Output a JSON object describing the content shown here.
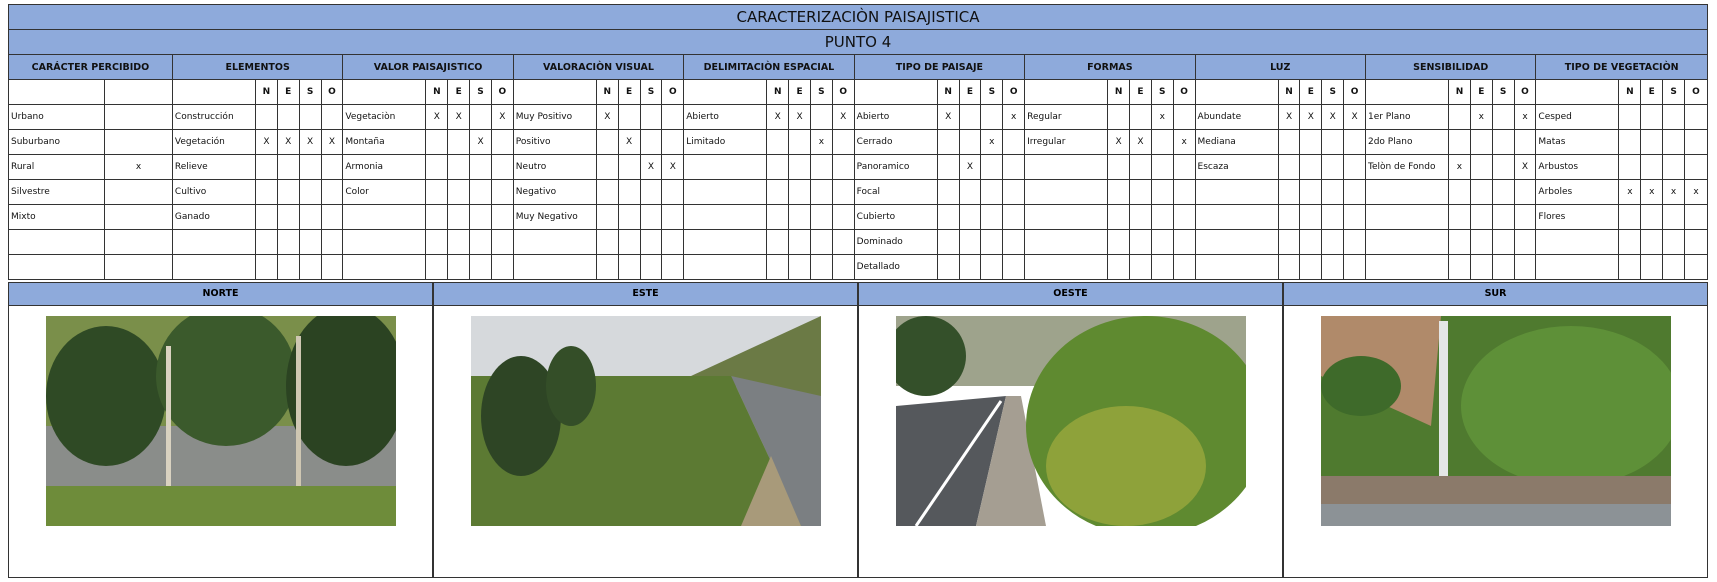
{
  "title": "CARACTERIZACIÒN PAISAJISTICA",
  "subtitle": "PUNTO 4",
  "sections": [
    {
      "title": "CARÁCTER PERCIBIDO",
      "columns": [],
      "items": [
        {
          "label": "Urbano",
          "marks": [
            null
          ]
        },
        {
          "label": "Suburbano",
          "marks": [
            null
          ]
        },
        {
          "label": "Rural",
          "marks": [
            "x"
          ]
        },
        {
          "label": "Silvestre",
          "marks": [
            null
          ]
        },
        {
          "label": "Mixto",
          "marks": [
            null
          ]
        }
      ]
    },
    {
      "title": "ELEMENTOS",
      "columns": [
        "N",
        "E",
        "S",
        "O"
      ],
      "items": [
        {
          "label": "Construcción",
          "marks": [
            null,
            null,
            null,
            null
          ]
        },
        {
          "label": "Vegetación",
          "marks": [
            "X",
            "X",
            "X",
            "X"
          ]
        },
        {
          "label": "Relieve",
          "marks": [
            null,
            null,
            null,
            null
          ]
        },
        {
          "label": "Cultivo",
          "marks": [
            null,
            null,
            null,
            null
          ]
        },
        {
          "label": "Ganado",
          "marks": [
            null,
            null,
            null,
            null
          ]
        }
      ]
    },
    {
      "title": "VALOR PAISAJISTICO",
      "columns": [
        "N",
        "E",
        "S",
        "O"
      ],
      "items": [
        {
          "label": "Vegetaciòn",
          "marks": [
            "X",
            "X",
            null,
            "X"
          ]
        },
        {
          "label": "Montaña",
          "marks": [
            null,
            null,
            "X",
            null
          ]
        },
        {
          "label": "Armonia",
          "marks": [
            null,
            null,
            null,
            null
          ]
        },
        {
          "label": "Color",
          "marks": [
            null,
            null,
            null,
            null
          ]
        }
      ]
    },
    {
      "title": "VALORACIÒN VISUAL",
      "columns": [
        "N",
        "E",
        "S",
        "O"
      ],
      "items": [
        {
          "label": "Muy Positivo",
          "marks": [
            "X",
            null,
            null,
            null
          ]
        },
        {
          "label": "Positivo",
          "marks": [
            null,
            "X",
            null,
            null
          ]
        },
        {
          "label": "Neutro",
          "marks": [
            null,
            null,
            "X",
            "X"
          ]
        },
        {
          "label": "Negativo",
          "marks": [
            null,
            null,
            null,
            null
          ]
        },
        {
          "label": "Muy Negativo",
          "marks": [
            null,
            null,
            null,
            null
          ]
        }
      ]
    },
    {
      "title": "DELIMITACIÒN ESPACIAL",
      "columns": [
        "N",
        "E",
        "S",
        "O"
      ],
      "items": [
        {
          "label": "Abierto",
          "marks": [
            "X",
            "X",
            null,
            "X"
          ]
        },
        {
          "label": "Limitado",
          "marks": [
            null,
            null,
            "x",
            null
          ]
        }
      ]
    },
    {
      "title": "TIPO DE PAISAJE",
      "columns": [
        "N",
        "E",
        "S",
        "O"
      ],
      "items": [
        {
          "label": "Abierto",
          "marks": [
            "X",
            null,
            null,
            "x"
          ]
        },
        {
          "label": "Cerrado",
          "marks": [
            null,
            null,
            "x",
            null
          ]
        },
        {
          "label": "Panoramico",
          "marks": [
            null,
            "X",
            null,
            null
          ]
        },
        {
          "label": "Focal",
          "marks": [
            null,
            null,
            null,
            null
          ]
        },
        {
          "label": "Cubierto",
          "marks": [
            null,
            null,
            null,
            null
          ]
        },
        {
          "label": "Dominado",
          "marks": [
            null,
            null,
            null,
            null
          ]
        },
        {
          "label": "Detallado",
          "marks": [
            null,
            null,
            null,
            null
          ]
        }
      ]
    },
    {
      "title": "FORMAS",
      "columns": [
        "N",
        "E",
        "S",
        "O"
      ],
      "items": [
        {
          "label": "Regular",
          "marks": [
            null,
            null,
            "x",
            null
          ]
        },
        {
          "label": "Irregular",
          "marks": [
            "X",
            "X",
            null,
            "x"
          ]
        }
      ]
    },
    {
      "title": "LUZ",
      "columns": [
        "N",
        "E",
        "S",
        "O"
      ],
      "items": [
        {
          "label": "Abundate",
          "marks": [
            "X",
            "X",
            "X",
            "X"
          ]
        },
        {
          "label": "Mediana",
          "marks": [
            null,
            null,
            null,
            null
          ]
        },
        {
          "label": "Escaza",
          "marks": [
            null,
            null,
            null,
            null
          ]
        }
      ]
    },
    {
      "title": "SENSIBILIDAD",
      "columns": [
        "N",
        "E",
        "S",
        "O"
      ],
      "items": [
        {
          "label": "1er Plano",
          "marks": [
            null,
            "x",
            null,
            "x"
          ]
        },
        {
          "label": "2do Plano",
          "marks": [
            null,
            null,
            null,
            null
          ]
        },
        {
          "label": "Telòn de Fondo",
          "marks": [
            "x",
            null,
            null,
            "X"
          ]
        }
      ]
    },
    {
      "title": "TIPO DE VEGETACIÒN",
      "columns": [
        "N",
        "E",
        "S",
        "O"
      ],
      "items": [
        {
          "label": "Cesped",
          "marks": [
            null,
            null,
            null,
            null
          ]
        },
        {
          "label": "Matas",
          "marks": [
            null,
            null,
            null,
            null
          ]
        },
        {
          "label": "Arbustos",
          "marks": [
            null,
            null,
            null,
            null
          ]
        },
        {
          "label": "Arboles",
          "marks": [
            "x",
            "x",
            "x",
            "x"
          ]
        },
        {
          "label": "Flores",
          "marks": [
            null,
            null,
            null,
            null
          ]
        }
      ]
    }
  ],
  "photos": [
    {
      "label": "NORTE"
    },
    {
      "label": "ESTE"
    },
    {
      "label": "OESTE"
    },
    {
      "label": "SUR"
    }
  ]
}
